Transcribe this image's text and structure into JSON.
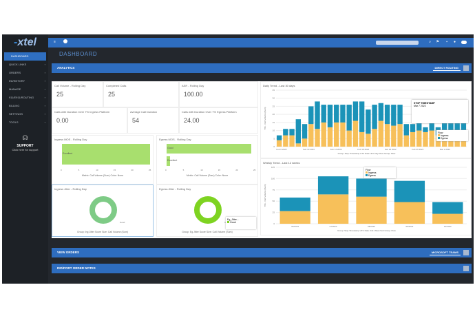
{
  "app": {
    "logo": "xtel",
    "page_title": "DASHBOARD"
  },
  "sidebar": {
    "items": [
      {
        "label": "DASHBOARD"
      },
      {
        "label": "QUICK LINKS"
      },
      {
        "label": "ORDERS"
      },
      {
        "label": "INVENTORY"
      },
      {
        "label": "MANAGE"
      },
      {
        "label": "911/E911/ROUTING"
      },
      {
        "label": "BILLING"
      },
      {
        "label": "SETTINGS"
      },
      {
        "label": "TOOLS"
      }
    ],
    "support_title": "SUPPORT",
    "support_sub": "Click here for support"
  },
  "sections": {
    "analytics": "ANALYTICS",
    "direct_routing": "DIRECT ROUTING",
    "view_orders": "VIEW ORDERS",
    "microsoft_teams": "MICROSOFT TEAMS",
    "notes": "DID/PORT ORDER NOTES"
  },
  "kpis": [
    {
      "label": "Call Volume - Rolling Day",
      "value": "25"
    },
    {
      "label": "Completed Calls",
      "value": "25"
    },
    {
      "label": "ASR - Rolling Day",
      "value": "100.00"
    },
    {
      "label": "Calls with Duration Over 7% Ingress Platform",
      "value": "0.00"
    },
    {
      "label": "Average Call Duration",
      "value": "54"
    },
    {
      "label": "Calls with Duration Over 7% Egress Platform",
      "value": "24.00"
    }
  ],
  "ingress_mos": {
    "title": "Ingress MOS - Rolling Day",
    "bar_label": "Excellent",
    "caption": "Metric: Call Volume (Sum)  Color: None",
    "ticks": [
      "0",
      "5",
      "10",
      "15",
      "20",
      "25"
    ]
  },
  "egress_mos": {
    "title": "Egress MOS - Rolling Day",
    "bars": [
      {
        "label": "Good",
        "value": 24
      },
      {
        "label": "Excellent",
        "value": 1
      }
    ],
    "caption": "Metric: Call Volume (Sum)  Color: None",
    "ticks": [
      "0",
      "5",
      "10",
      "15",
      "20",
      "25"
    ]
  },
  "ingress_jitter": {
    "title": "Ingress Jitter - Rolling Day",
    "legend": "Good",
    "caption": "Group: Ing Jitter Score  Size: Call Volume (Sum)"
  },
  "egress_jitter": {
    "title": "Egress Jitter - Rolling Day",
    "legend_title": "Eg_Jitter...",
    "legend": "Good",
    "caption": "Group: Eg Jitter Score  Size: Call Volume (Sum)"
  },
  "colors": {
    "orange": "#f7c05a",
    "blue": "#1b93b8",
    "green": "#a8df6e",
    "donut1": "#7ecb86",
    "donut2": "#7ed321"
  },
  "chart_data": [
    {
      "type": "bar",
      "title": "Daily Trend - Last 30 days",
      "ylabel": "Y01 - Call Volume (Sum)",
      "ylim": [
        0,
        35
      ],
      "yticks": [
        "0",
        "5",
        "10",
        "15",
        "20",
        "25",
        "30",
        "35"
      ],
      "xticks": [
        "Feb 6 2022",
        "Feb 10 2022",
        "Feb 14 2022",
        "Feb 18 2022",
        "Feb 22 2022",
        "Feb 26 2022",
        "Mar 2 2022"
      ],
      "series": [
        {
          "name": "Ingress",
          "values": [
            4,
            7,
            7,
            2,
            5,
            14,
            11,
            15,
            12,
            15,
            15,
            10,
            16,
            9,
            8,
            11,
            16,
            14,
            13,
            14,
            7,
            9,
            10,
            9,
            10,
            7,
            10,
            10,
            10,
            10
          ]
        },
        {
          "name": "Egress",
          "values": [
            3,
            4,
            4,
            15,
            9,
            11,
            17,
            11,
            14,
            11,
            11,
            16,
            12,
            19,
            15,
            15,
            11,
            12,
            13,
            12,
            7,
            5,
            10,
            3,
            10,
            5,
            10,
            10,
            10,
            10
          ]
        }
      ],
      "caption": "Group: Stop Timestamp UTC  Date Unit: Day  Pivot Group: Flow",
      "tooltip": {
        "title": "STOP TIMESTAMP",
        "date": "Mar 7 2022"
      },
      "legend_title": "Flow"
    },
    {
      "type": "bar",
      "title": "Weekly Trend - Last 12 weeks",
      "ylabel": "Y01 - Call Volume (Sum)",
      "ylim": [
        0,
        125
      ],
      "yticks": [
        "0",
        "25",
        "50",
        "75",
        "100",
        "125"
      ],
      "categories": [
        "06/2022",
        "07/2022",
        "08/2022",
        "09/2022",
        "10/2022"
      ],
      "series": [
        {
          "name": "Ingress",
          "values": [
            28,
            65,
            60,
            48,
            22
          ]
        },
        {
          "name": "Egress",
          "values": [
            30,
            40,
            40,
            47,
            26
          ]
        }
      ],
      "caption": "Group: Stop Timestamp UTC  Date Unit: Week  Sub Group: Flow",
      "legend_title": "Flow"
    }
  ]
}
